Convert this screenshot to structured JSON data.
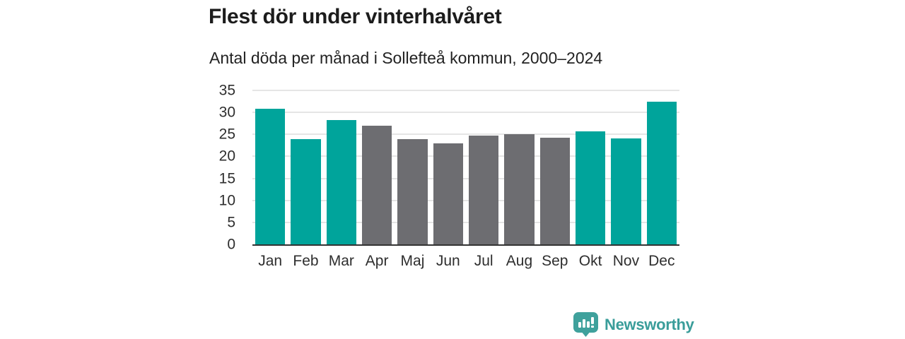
{
  "header": {
    "title": "Flest dör under vinterhalvåret",
    "subtitle": "Antal döda per månad i Sollefteå kommun, 2000–2024"
  },
  "chart_data": {
    "type": "bar",
    "title": "Flest dör under vinterhalvåret",
    "subtitle": "Antal döda per månad i Sollefteå kommun, 2000–2024",
    "categories": [
      "Jan",
      "Feb",
      "Mar",
      "Apr",
      "Maj",
      "Jun",
      "Jul",
      "Aug",
      "Sep",
      "Okt",
      "Nov",
      "Dec"
    ],
    "values": [
      30.9,
      23.9,
      28.3,
      26.9,
      23.9,
      23.0,
      24.8,
      25.1,
      24.3,
      25.7,
      24.1,
      32.4
    ],
    "bar_colors": [
      "teal",
      "teal",
      "teal",
      "gray",
      "gray",
      "gray",
      "gray",
      "gray",
      "gray",
      "teal",
      "teal",
      "teal"
    ],
    "palette": {
      "teal": "#00a49b",
      "gray": "#6d6d71"
    },
    "xlabel": "",
    "ylabel": "",
    "ylim": [
      0,
      35
    ],
    "yticks": [
      0,
      5,
      10,
      15,
      20,
      25,
      30,
      35
    ],
    "grid": "horizontal",
    "legend": "none"
  },
  "colors": {
    "background": "#ffffff",
    "grid": "#e5e5e5",
    "axis": "#333333",
    "title_text": "#1c1c1c",
    "subtitle_text": "#222222",
    "tick_text": "#2e2e2e",
    "logo_teal": "#3a9d9a",
    "logo_bubble": "#3fa19c"
  },
  "logo": {
    "text": "Newsworthy",
    "icon": "newsworthy-speech-bubble-bar-chart-icon"
  }
}
